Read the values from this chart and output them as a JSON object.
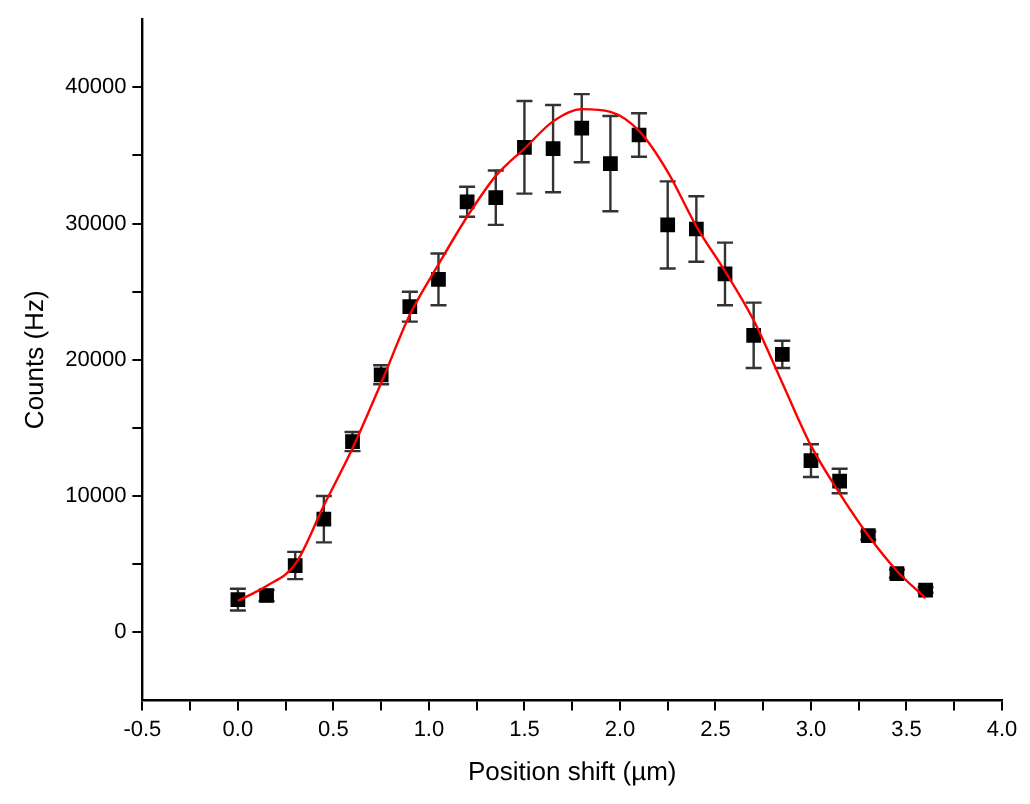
{
  "chart_data": {
    "type": "scatter",
    "xlabel": "Position shift (µm)",
    "ylabel": "Counts (Hz)",
    "xlim": [
      -0.5,
      4.0
    ],
    "ylim": [
      -5000,
      45000
    ],
    "xticks": [
      {
        "value": -0.5,
        "label": "-0.5"
      },
      {
        "value": -0.25,
        "label": null
      },
      {
        "value": 0,
        "label": "0.0"
      },
      {
        "value": 0.25,
        "label": null
      },
      {
        "value": 0.5,
        "label": "0.5"
      },
      {
        "value": 0.75,
        "label": null
      },
      {
        "value": 1,
        "label": "1.0"
      },
      {
        "value": 1.25,
        "label": null
      },
      {
        "value": 1.5,
        "label": "1.5"
      },
      {
        "value": 1.75,
        "label": null
      },
      {
        "value": 2,
        "label": "2.0"
      },
      {
        "value": 2.25,
        "label": null
      },
      {
        "value": 2.5,
        "label": "2.5"
      },
      {
        "value": 2.75,
        "label": null
      },
      {
        "value": 3,
        "label": "3.0"
      },
      {
        "value": 3.25,
        "label": null
      },
      {
        "value": 3.5,
        "label": "3.5"
      },
      {
        "value": 3.75,
        "label": null
      },
      {
        "value": 4,
        "label": "4.0"
      }
    ],
    "yticks": [
      0,
      {
        "value": 5000,
        "label": null
      },
      10000,
      {
        "value": 15000,
        "label": null
      },
      20000,
      {
        "value": 25000,
        "label": null
      },
      30000,
      {
        "value": 35000,
        "label": null
      },
      40000
    ],
    "grid": false,
    "legend": false,
    "marker": "square",
    "series": [
      {
        "type": "scatter",
        "color": "#000000",
        "x": [
          0,
          0.15,
          0.3,
          0.45,
          0.6,
          0.75,
          0.9,
          1.05,
          1.2,
          1.35,
          1.5,
          1.65,
          1.8,
          1.95,
          2.1,
          2.25,
          2.4,
          2.55,
          2.7,
          2.85,
          3.0,
          3.15,
          3.3,
          3.45,
          3.6
        ],
        "values": [
          2400,
          2700,
          4900,
          8300,
          14000,
          18900,
          23900,
          25900,
          31600,
          31900,
          35600,
          35500,
          37000,
          34400,
          36500,
          29900,
          29600,
          26300,
          21800,
          20400,
          12600,
          11100,
          7100,
          4300,
          3100
        ],
        "errors": [
          800,
          400,
          1000,
          1700,
          700,
          700,
          1100,
          1900,
          1100,
          2000,
          3400,
          3200,
          2500,
          3500,
          1600,
          3200,
          2400,
          2300,
          2400,
          1000,
          1200,
          900,
          300,
          300,
          200
        ]
      },
      {
        "type": "line",
        "color": "#ff0000",
        "marker": "none",
        "x": [
          0,
          0.15,
          0.3,
          0.45,
          0.6,
          0.75,
          0.9,
          1.05,
          1.2,
          1.35,
          1.5,
          1.65,
          1.8,
          1.95,
          2.1,
          2.25,
          2.4,
          2.55,
          2.7,
          2.85,
          3.0,
          3.15,
          3.3,
          3.45,
          3.6
        ],
        "values": [
          2300,
          3400,
          5000,
          9300,
          13500,
          18300,
          23300,
          27000,
          30500,
          33500,
          35500,
          37500,
          38400,
          38200,
          36800,
          33800,
          29800,
          26500,
          22900,
          18300,
          13700,
          10200,
          7100,
          4500,
          2500
        ]
      }
    ]
  }
}
